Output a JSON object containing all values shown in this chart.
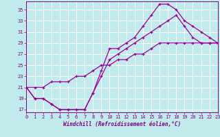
{
  "xlabel": "Windchill (Refroidissement éolien,°C)",
  "bg_color": "#c0eaec",
  "grid_color": "#ffffff",
  "line_color": "#990099",
  "x_ticks": [
    0,
    1,
    2,
    3,
    4,
    5,
    6,
    7,
    8,
    9,
    10,
    11,
    12,
    13,
    14,
    15,
    16,
    17,
    18,
    19,
    20,
    21,
    22,
    23
  ],
  "y_ticks": [
    17,
    19,
    21,
    23,
    25,
    27,
    29,
    31,
    33,
    35
  ],
  "xlim": [
    0,
    23
  ],
  "ylim": [
    16.5,
    36.5
  ],
  "line1_x": [
    0,
    1,
    2,
    3,
    4,
    5,
    6,
    7,
    8,
    9,
    10,
    11,
    12,
    13,
    14,
    15,
    16,
    17,
    18,
    19,
    20,
    21,
    22,
    23
  ],
  "line1_y": [
    21,
    19,
    19,
    18,
    17,
    17,
    17,
    17,
    20,
    24,
    28,
    28,
    29,
    30,
    32,
    34,
    36,
    36,
    35,
    33,
    32,
    31,
    30,
    29
  ],
  "line2_x": [
    0,
    1,
    2,
    3,
    4,
    5,
    6,
    7,
    8,
    9,
    10,
    11,
    12,
    13,
    14,
    15,
    16,
    17,
    18,
    19,
    20,
    21,
    22,
    23
  ],
  "line2_y": [
    21,
    19,
    19,
    18,
    17,
    17,
    17,
    17,
    20,
    23,
    26,
    27,
    28,
    29,
    30,
    31,
    32,
    33,
    34,
    32,
    30,
    29,
    29,
    29
  ],
  "line3_x": [
    0,
    1,
    2,
    3,
    4,
    5,
    6,
    7,
    8,
    9,
    10,
    11,
    12,
    13,
    14,
    15,
    16,
    17,
    18,
    19,
    20,
    21,
    22,
    23
  ],
  "line3_y": [
    21,
    21,
    21,
    22,
    22,
    22,
    23,
    23,
    24,
    25,
    25,
    26,
    26,
    27,
    27,
    28,
    29,
    29,
    29,
    29,
    29,
    29,
    29,
    29
  ]
}
